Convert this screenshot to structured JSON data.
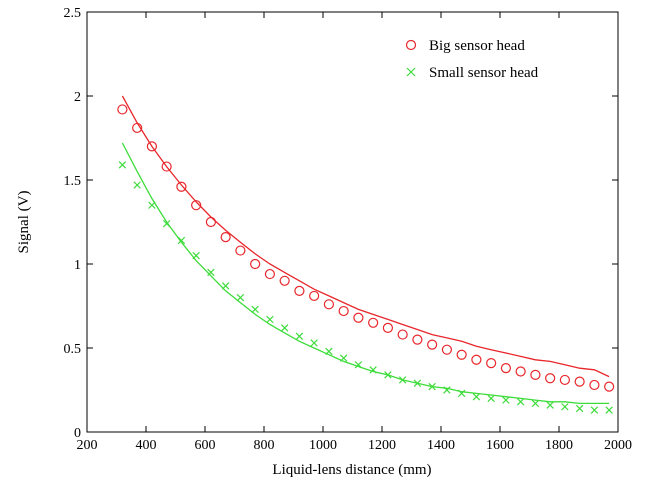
{
  "chart_data": {
    "type": "scatter",
    "title": "",
    "xlabel": "Liquid-lens distance (mm)",
    "ylabel": "Signal (V)",
    "xlim": [
      200,
      2000
    ],
    "ylim": [
      0,
      2.5
    ],
    "xticks": [
      "200",
      "400",
      "600",
      "800",
      "1000",
      "1200",
      "1400",
      "1600",
      "1800",
      "2000"
    ],
    "yticks": [
      "0",
      "0.5",
      "1",
      "1.5",
      "2",
      "2.5"
    ],
    "grid": false,
    "legend_position": "top-right",
    "series": [
      {
        "name": "Big sensor head",
        "color": "#e8262b",
        "marker": "circle",
        "x": [
          320,
          370,
          420,
          470,
          520,
          570,
          620,
          670,
          720,
          770,
          820,
          870,
          920,
          970,
          1020,
          1070,
          1120,
          1170,
          1220,
          1270,
          1320,
          1370,
          1420,
          1470,
          1520,
          1570,
          1620,
          1670,
          1720,
          1770,
          1820,
          1870,
          1920,
          1970
        ],
        "y": [
          1.92,
          1.81,
          1.7,
          1.58,
          1.46,
          1.35,
          1.25,
          1.16,
          1.08,
          1.0,
          0.94,
          0.9,
          0.84,
          0.81,
          0.76,
          0.72,
          0.68,
          0.65,
          0.62,
          0.58,
          0.55,
          0.52,
          0.49,
          0.46,
          0.43,
          0.41,
          0.38,
          0.36,
          0.34,
          0.32,
          0.31,
          0.3,
          0.28,
          0.27
        ],
        "fit": {
          "x": [
            320,
            370,
            420,
            470,
            520,
            570,
            620,
            670,
            720,
            770,
            820,
            870,
            920,
            970,
            1020,
            1070,
            1120,
            1170,
            1220,
            1270,
            1320,
            1370,
            1420,
            1470,
            1520,
            1570,
            1620,
            1670,
            1720,
            1770,
            1820,
            1870,
            1920,
            1970
          ],
          "y": [
            2.0,
            1.84,
            1.7,
            1.58,
            1.47,
            1.37,
            1.28,
            1.2,
            1.13,
            1.06,
            1.0,
            0.95,
            0.9,
            0.85,
            0.81,
            0.77,
            0.73,
            0.7,
            0.67,
            0.64,
            0.61,
            0.58,
            0.56,
            0.54,
            0.51,
            0.49,
            0.47,
            0.45,
            0.43,
            0.42,
            0.4,
            0.38,
            0.37,
            0.33
          ]
        }
      },
      {
        "name": "Small sensor head",
        "color": "#3ddc3a",
        "marker": "x",
        "x": [
          320,
          370,
          420,
          470,
          520,
          570,
          620,
          670,
          720,
          770,
          820,
          870,
          920,
          970,
          1020,
          1070,
          1120,
          1170,
          1220,
          1270,
          1320,
          1370,
          1420,
          1470,
          1520,
          1570,
          1620,
          1670,
          1720,
          1770,
          1820,
          1870,
          1920,
          1970
        ],
        "y": [
          1.59,
          1.47,
          1.35,
          1.24,
          1.14,
          1.05,
          0.95,
          0.87,
          0.8,
          0.73,
          0.67,
          0.62,
          0.57,
          0.53,
          0.48,
          0.44,
          0.4,
          0.37,
          0.34,
          0.31,
          0.29,
          0.27,
          0.25,
          0.23,
          0.21,
          0.2,
          0.19,
          0.18,
          0.17,
          0.16,
          0.15,
          0.14,
          0.13,
          0.13
        ],
        "fit": {
          "x": [
            320,
            370,
            420,
            470,
            520,
            570,
            620,
            670,
            720,
            770,
            820,
            870,
            920,
            970,
            1020,
            1070,
            1120,
            1170,
            1220,
            1270,
            1320,
            1370,
            1420,
            1470,
            1520,
            1570,
            1620,
            1670,
            1720,
            1770,
            1820,
            1870,
            1920,
            1970
          ],
          "y": [
            1.72,
            1.55,
            1.39,
            1.25,
            1.13,
            1.02,
            0.93,
            0.84,
            0.77,
            0.7,
            0.64,
            0.59,
            0.54,
            0.5,
            0.46,
            0.42,
            0.39,
            0.36,
            0.34,
            0.31,
            0.29,
            0.27,
            0.26,
            0.24,
            0.23,
            0.22,
            0.21,
            0.2,
            0.19,
            0.18,
            0.18,
            0.17,
            0.17,
            0.17
          ]
        }
      }
    ]
  }
}
